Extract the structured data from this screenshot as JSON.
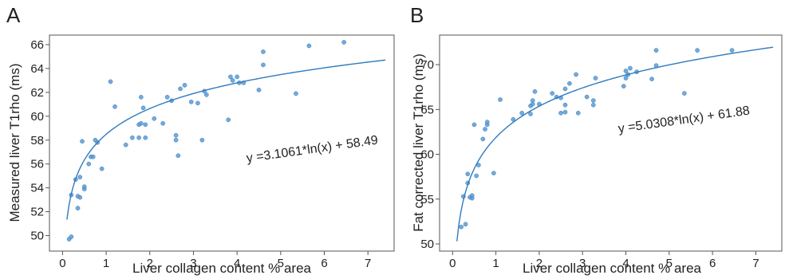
{
  "chart_data": [
    {
      "type": "scatter",
      "panel_label": "A",
      "xlabel": "Liver collagen content % area",
      "ylabel": "Measured liver T1rho (ms)",
      "xlim": [
        -0.3,
        7.6
      ],
      "ylim": [
        48.7,
        66.8
      ],
      "xticks": [
        0,
        1,
        2,
        3,
        4,
        5,
        6,
        7
      ],
      "yticks": [
        50,
        52,
        54,
        56,
        58,
        60,
        62,
        64,
        66
      ],
      "grid": false,
      "colors": {
        "points": "#5b9bd5",
        "fit": "#2e7bbf",
        "axis": "#555555"
      },
      "fit": {
        "equation": "y =3.1061*ln(x) + 58.49",
        "a": 3.1061,
        "b": 58.49,
        "x_range": [
          0.1,
          7.4
        ]
      },
      "points": [
        [
          0.15,
          49.7
        ],
        [
          0.2,
          49.9
        ],
        [
          0.2,
          53.4
        ],
        [
          0.3,
          54.7
        ],
        [
          0.35,
          52.3
        ],
        [
          0.35,
          53.3
        ],
        [
          0.4,
          53.2
        ],
        [
          0.4,
          54.9
        ],
        [
          0.45,
          57.9
        ],
        [
          0.5,
          53.9
        ],
        [
          0.5,
          54.1
        ],
        [
          0.6,
          56.0
        ],
        [
          0.65,
          56.6
        ],
        [
          0.7,
          56.6
        ],
        [
          0.75,
          58.0
        ],
        [
          0.8,
          57.8
        ],
        [
          0.9,
          55.6
        ],
        [
          1.1,
          62.9
        ],
        [
          1.2,
          60.8
        ],
        [
          1.45,
          57.6
        ],
        [
          1.6,
          58.2
        ],
        [
          1.75,
          58.2
        ],
        [
          1.75,
          59.3
        ],
        [
          1.8,
          59.4
        ],
        [
          1.8,
          61.6
        ],
        [
          1.85,
          60.7
        ],
        [
          1.9,
          58.2
        ],
        [
          1.9,
          59.3
        ],
        [
          2.1,
          59.8
        ],
        [
          2.3,
          59.4
        ],
        [
          2.4,
          61.6
        ],
        [
          2.5,
          61.3
        ],
        [
          2.6,
          58.0
        ],
        [
          2.6,
          58.4
        ],
        [
          2.65,
          56.7
        ],
        [
          2.7,
          62.3
        ],
        [
          2.8,
          62.6
        ],
        [
          2.95,
          61.2
        ],
        [
          3.1,
          61.1
        ],
        [
          3.2,
          58.0
        ],
        [
          3.25,
          62.1
        ],
        [
          3.3,
          61.8
        ],
        [
          3.8,
          59.7
        ],
        [
          3.85,
          63.3
        ],
        [
          3.9,
          63.0
        ],
        [
          4.0,
          63.3
        ],
        [
          4.05,
          62.8
        ],
        [
          4.15,
          62.8
        ],
        [
          4.5,
          62.2
        ],
        [
          4.6,
          64.3
        ],
        [
          4.6,
          65.4
        ],
        [
          5.35,
          61.9
        ],
        [
          5.65,
          65.9
        ],
        [
          6.45,
          66.2
        ]
      ]
    },
    {
      "type": "scatter",
      "panel_label": "B",
      "xlabel": "Liver collagen content % area",
      "ylabel": "Fat corrected liver T1rho (ms)",
      "xlim": [
        -0.3,
        7.6
      ],
      "ylim": [
        49.2,
        73.3
      ],
      "xticks": [
        0,
        1,
        2,
        3,
        4,
        5,
        6,
        7
      ],
      "yticks": [
        50,
        55,
        60,
        65,
        70
      ],
      "grid": false,
      "colors": {
        "points": "#5b9bd5",
        "fit": "#2e7bbf",
        "axis": "#555555"
      },
      "fit": {
        "equation": "y =5.0308*ln(x) + 61.88",
        "a": 5.0308,
        "b": 61.88,
        "x_range": [
          0.1,
          7.4
        ]
      },
      "points": [
        [
          0.2,
          51.9
        ],
        [
          0.25,
          55.3
        ],
        [
          0.3,
          52.2
        ],
        [
          0.35,
          56.8
        ],
        [
          0.35,
          57.8
        ],
        [
          0.4,
          55.2
        ],
        [
          0.45,
          55.1
        ],
        [
          0.45,
          55.4
        ],
        [
          0.5,
          63.3
        ],
        [
          0.55,
          57.6
        ],
        [
          0.6,
          58.8
        ],
        [
          0.7,
          61.7
        ],
        [
          0.75,
          62.8
        ],
        [
          0.8,
          63.3
        ],
        [
          0.8,
          63.6
        ],
        [
          0.95,
          57.9
        ],
        [
          1.1,
          66.1
        ],
        [
          1.4,
          63.9
        ],
        [
          1.6,
          64.6
        ],
        [
          1.8,
          64.5
        ],
        [
          1.8,
          65.4
        ],
        [
          1.85,
          65.6
        ],
        [
          1.85,
          66.0
        ],
        [
          1.9,
          67.0
        ],
        [
          2.0,
          65.6
        ],
        [
          2.3,
          66.8
        ],
        [
          2.4,
          66.4
        ],
        [
          2.5,
          64.6
        ],
        [
          2.5,
          66.3
        ],
        [
          2.6,
          64.7
        ],
        [
          2.6,
          65.5
        ],
        [
          2.6,
          67.3
        ],
        [
          2.7,
          67.9
        ],
        [
          2.85,
          68.9
        ],
        [
          2.9,
          64.6
        ],
        [
          3.1,
          66.4
        ],
        [
          3.25,
          65.5
        ],
        [
          3.25,
          66.0
        ],
        [
          3.3,
          68.5
        ],
        [
          3.95,
          67.6
        ],
        [
          4.0,
          68.5
        ],
        [
          4.0,
          69.3
        ],
        [
          4.05,
          68.9
        ],
        [
          4.1,
          69.6
        ],
        [
          4.25,
          69.2
        ],
        [
          4.6,
          68.4
        ],
        [
          4.7,
          69.9
        ],
        [
          4.7,
          71.6
        ],
        [
          5.35,
          66.8
        ],
        [
          5.65,
          71.6
        ],
        [
          6.45,
          71.6
        ]
      ]
    }
  ]
}
